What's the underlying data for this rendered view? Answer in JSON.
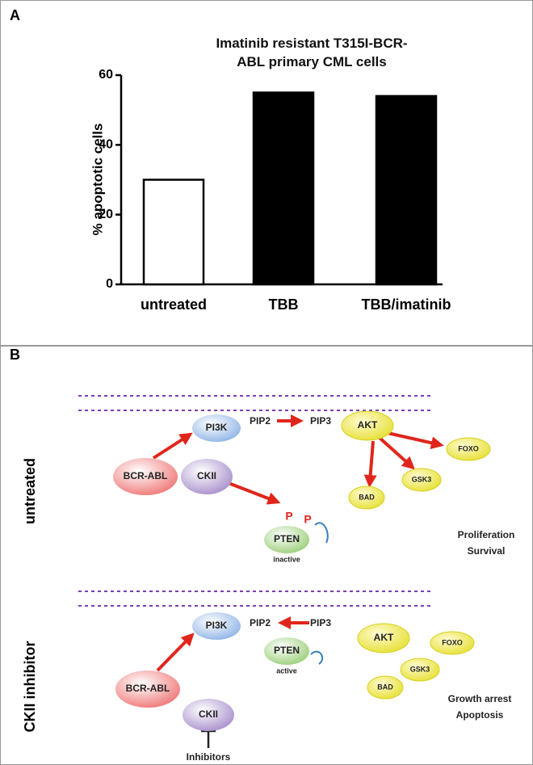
{
  "chart_data": {
    "type": "bar",
    "panel_label": "A",
    "title": "Imatinib resistant T315I-BCR-ABL primary CML cells",
    "ylabel": "% apoptotic cells",
    "categories": [
      "untreated",
      "TBB",
      "TBB/imatinib"
    ],
    "values": [
      30,
      55,
      54
    ],
    "colors": [
      "#ffffff",
      "#000000",
      "#000000"
    ],
    "ylim": [
      0,
      60
    ],
    "yticks": [
      0,
      20,
      40,
      60
    ],
    "grid": false
  },
  "panel_b": {
    "label": "B",
    "untreated": {
      "label": "untreated",
      "pi3k": "PI3K",
      "pip2": "PIP2",
      "pip3": "PIP3",
      "akt": "AKT",
      "foxo": "FOXO",
      "gsk3": "GSK3",
      "bad": "BAD",
      "bcr_abl": "BCR-ABL",
      "ckii": "CKII",
      "p1": "P",
      "p2": "P",
      "pten": "PTEN",
      "pten_state": "inactive",
      "outcome": [
        "Proliferation",
        "Survival"
      ]
    },
    "inhibitor": {
      "label": "CKII inhibitor",
      "pi3k": "PI3K",
      "pip2": "PIP2",
      "pip3": "PIP3",
      "pten": "PTEN",
      "pten_state": "active",
      "akt": "AKT",
      "foxo": "FOXO",
      "gsk3": "GSK3",
      "bad": "BAD",
      "bcr_abl": "BCR-ABL",
      "ckii": "CKII",
      "inhibitors": "Inhibitors",
      "outcome": [
        "Growth arrest",
        "Apoptosis"
      ]
    }
  }
}
